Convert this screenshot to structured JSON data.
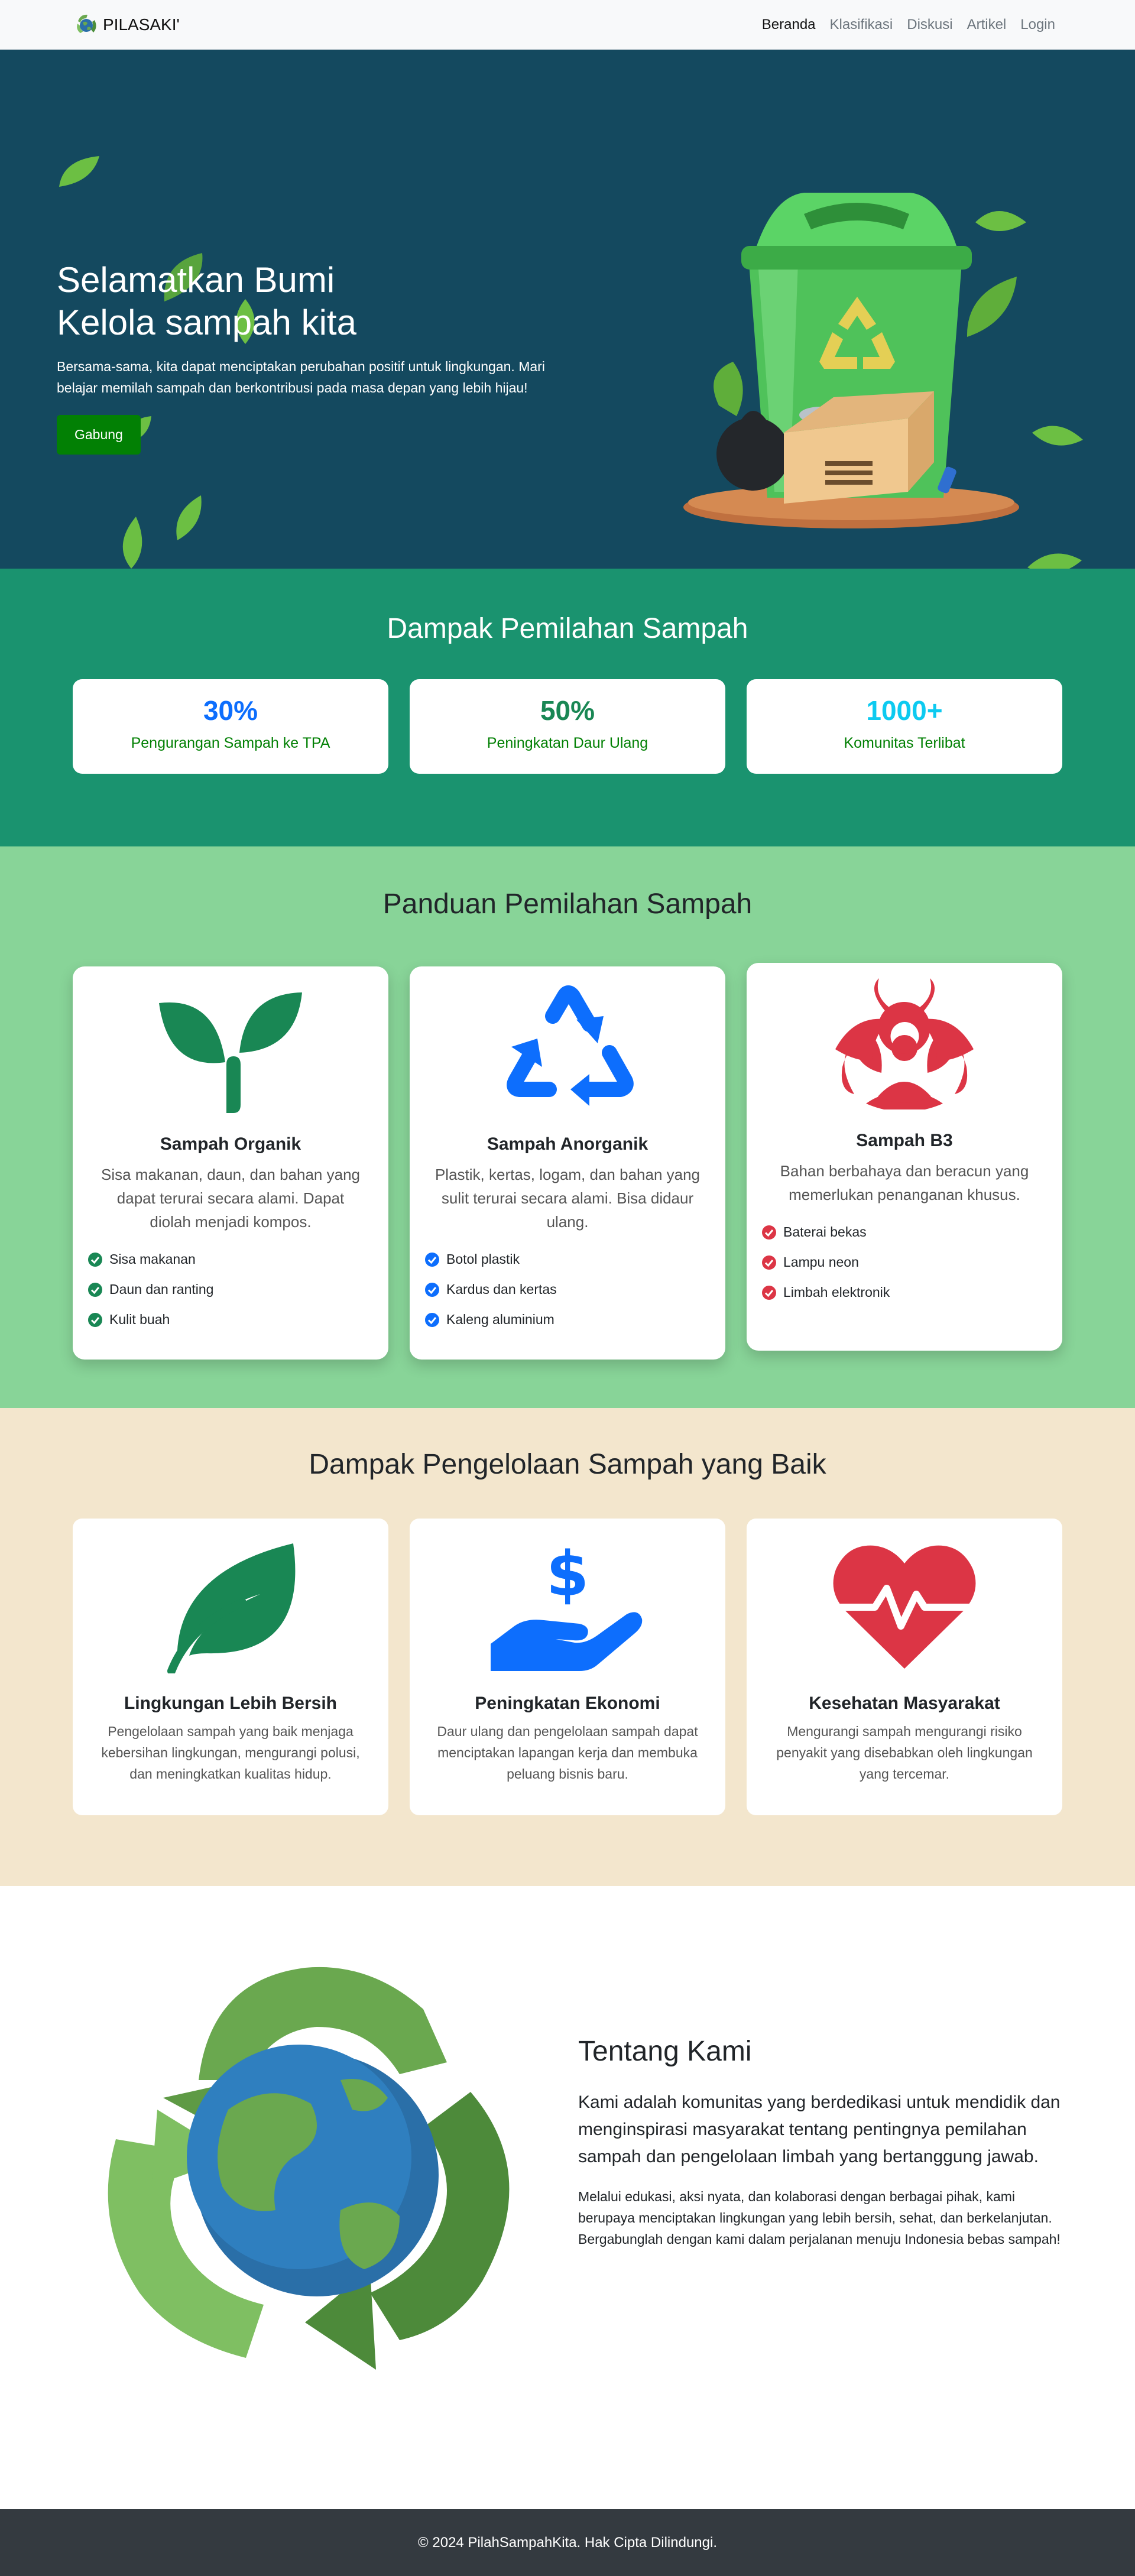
{
  "navbar": {
    "brand": "PILASAKI'",
    "links": [
      "Beranda",
      "Klasifikasi",
      "Diskusi",
      "Artikel",
      "Login"
    ]
  },
  "hero": {
    "title_line1": "Selamatkan Bumi",
    "title_line2": "Kelola sampah kita",
    "subtitle": "Bersama-sama, kita dapat menciptakan perubahan positif untuk lingkungan. Mari belajar memilah sampah dan berkontribusi pada masa depan yang lebih hijau!",
    "button": "Gabung"
  },
  "stats": {
    "title": "Dampak Pemilahan Sampah",
    "items": [
      {
        "value": "30%",
        "label": "Pengurangan Sampah ke TPA",
        "color": "#0d6efd"
      },
      {
        "value": "50%",
        "label": "Peningkatan Daur Ulang",
        "color": "#198754"
      },
      {
        "value": "1000+",
        "label": "Komunitas Terlibat",
        "color": "#0dcaf0"
      }
    ]
  },
  "guide": {
    "title": "Panduan Pemilahan Sampah",
    "cards": [
      {
        "name": "Sampah Organik",
        "desc": "Sisa makanan, daun, dan bahan yang dapat terurai secara alami. Dapat diolah menjadi kompos.",
        "items": [
          "Sisa makanan",
          "Daun dan ranting",
          "Kulit buah"
        ],
        "icon": "sprout-icon",
        "color": "#198754"
      },
      {
        "name": "Sampah Anorganik",
        "desc": "Plastik, kertas, logam, dan bahan yang sulit terurai secara alami. Bisa didaur ulang.",
        "items": [
          "Botol plastik",
          "Kardus dan kertas",
          "Kaleng aluminium"
        ],
        "icon": "recycle-icon",
        "color": "#0d6efd"
      },
      {
        "name": "Sampah B3",
        "desc": "Bahan berbahaya dan beracun yang memerlukan penanganan khusus.",
        "items": [
          "Baterai bekas",
          "Lampu neon",
          "Limbah elektronik"
        ],
        "icon": "biohazard-icon",
        "color": "#dc3545"
      }
    ]
  },
  "benefits": {
    "title": "Dampak Pengelolaan Sampah yang Baik",
    "cards": [
      {
        "name": "Lingkungan Lebih Bersih",
        "desc": "Pengelolaan sampah yang baik menjaga kebersihan lingkungan, mengurangi polusi, dan meningkatkan kualitas hidup.",
        "icon": "leaf-icon",
        "color": "#198754"
      },
      {
        "name": "Peningkatan Ekonomi",
        "desc": "Daur ulang dan pengelolaan sampah dapat menciptakan lapangan kerja dan membuka peluang bisnis baru.",
        "icon": "hand-dollar-icon",
        "color": "#0d6efd"
      },
      {
        "name": "Kesehatan Masyarakat",
        "desc": "Mengurangi sampah mengurangi risiko penyakit yang disebabkan oleh lingkungan yang tercemar.",
        "icon": "heart-pulse-icon",
        "color": "#dc3545"
      }
    ]
  },
  "about": {
    "title": "Tentang Kami",
    "lead": "Kami adalah komunitas yang berdedikasi untuk mendidik dan menginspirasi masyarakat tentang pentingnya pemilahan sampah dan pengelolaan limbah yang bertanggung jawab.",
    "body": "Melalui edukasi, aksi nyata, dan kolaborasi dengan berbagai pihak, kami berupaya menciptakan lingkungan yang lebih bersih, sehat, dan berkelanjutan. Bergabunglah dengan kami dalam perjalanan menuju Indonesia bebas sampah!"
  },
  "footer": {
    "text": "© 2024 PilahSampahKita. Hak Cipta Dilindungi."
  }
}
